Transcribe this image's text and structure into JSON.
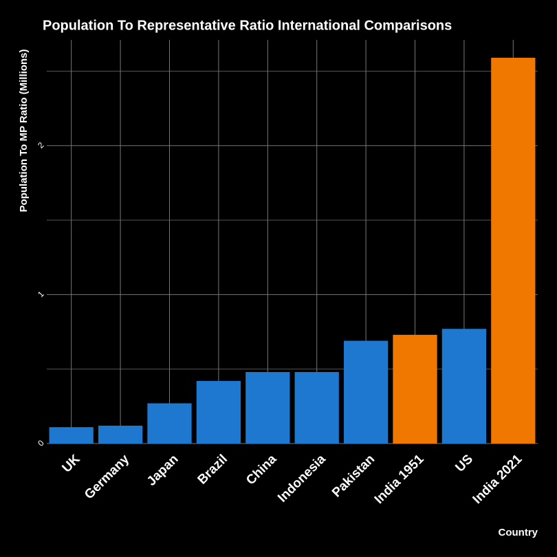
{
  "chart_data": {
    "type": "bar",
    "title": "Population To Representative Ratio International Comparisons",
    "x_label": "Country",
    "y_label": "Population To MP Ratio (Millions)",
    "categories": [
      "UK",
      "Germany",
      "Japan",
      "Brazil",
      "China",
      "Indonesia",
      "Pakistan",
      "India 1951",
      "US",
      "India 2021"
    ],
    "values": [
      0.11,
      0.12,
      0.27,
      0.42,
      0.48,
      0.48,
      0.69,
      0.73,
      0.77,
      2.59
    ],
    "colors": [
      "#1e78d0",
      "#1e78d0",
      "#1e78d0",
      "#1e78d0",
      "#1e78d0",
      "#1e78d0",
      "#1e78d0",
      "#f07800",
      "#1e78d0",
      "#f07800"
    ],
    "ylim": [
      0,
      2.71
    ],
    "yticks": [
      0,
      1,
      2
    ],
    "minor_yticks": [
      0.5,
      1.5,
      2.5
    ],
    "grid": true
  }
}
